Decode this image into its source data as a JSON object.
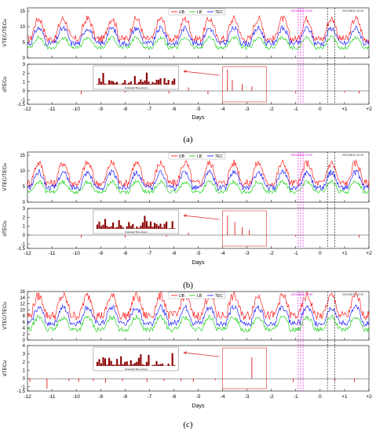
{
  "chart_data": [
    {
      "type": "line",
      "caption": "(a)",
      "top_panel": {
        "ylabel": "VTEC/TECu",
        "ylim": [
          0,
          16
        ],
        "yticks": [
          0,
          5,
          10,
          15
        ],
        "series": [
          {
            "name": "UB",
            "color": "#ff0000",
            "base": 8.5,
            "amp": 4.0,
            "noise": 1.2
          },
          {
            "name": "LB",
            "color": "#00cc00",
            "base": 4.5,
            "amp": 2.0,
            "noise": 0.6
          },
          {
            "name": "TEC",
            "color": "#0000ff",
            "base": 6.5,
            "amp": 3.0,
            "noise": 0.9
          }
        ],
        "annotation_magenta": "2021/08/14 12:29",
        "annotation_black": "2021/08/14 12:29"
      },
      "bottom_panel": {
        "ylabel": "dTECu",
        "ylim": [
          -1.5,
          3
        ],
        "yticks": [
          -1.5,
          -1,
          0,
          1,
          2,
          3
        ],
        "spikes": [
          [
            -9.8,
            -0.4
          ],
          [
            -8.0,
            -0.2
          ],
          [
            -6.2,
            -0.3
          ],
          [
            -5.4,
            0.4
          ],
          [
            -4.6,
            -0.4
          ],
          [
            -3.8,
            2.4
          ],
          [
            -3.6,
            1.2
          ],
          [
            -3.2,
            0.8
          ],
          [
            -2.8,
            0.5
          ],
          [
            -1.0,
            -0.3
          ],
          [
            1.0,
            -0.2
          ],
          [
            1.6,
            -0.3
          ]
        ],
        "inset_xlabel": "Universal Time (hour)"
      },
      "x": {
        "label": "Days",
        "xlim": [
          -12,
          2
        ],
        "ticks": [
          "-12",
          "-11",
          "-10",
          "-9",
          "-8",
          "-7",
          "-6",
          "-5",
          "-4",
          "-3",
          "-2",
          "-1",
          "0",
          "+1",
          "+2"
        ]
      },
      "event_lines_magenta": [
        -0.9,
        -0.8,
        -0.7
      ],
      "event_lines_black": [
        0.3,
        0.6
      ]
    },
    {
      "type": "line",
      "caption": "(b)",
      "top_panel": {
        "ylabel": "VTEC/TECu",
        "ylim": [
          0,
          16
        ],
        "yticks": [
          0,
          5,
          10,
          15
        ],
        "series": [
          {
            "name": "UB",
            "color": "#ff0000",
            "base": 8.5,
            "amp": 4.0,
            "noise": 1.2
          },
          {
            "name": "LB",
            "color": "#00cc00",
            "base": 4.5,
            "amp": 2.0,
            "noise": 0.6
          },
          {
            "name": "TEC",
            "color": "#0000ff",
            "base": 6.5,
            "amp": 3.0,
            "noise": 0.9
          }
        ],
        "annotation_magenta": "2021/08/14 12:29",
        "annotation_black": "2021/08/14 12:29"
      },
      "bottom_panel": {
        "ylabel": "dTECu",
        "ylim": [
          -1.5,
          3
        ],
        "yticks": [
          -1.5,
          -1,
          0,
          1,
          2,
          3
        ],
        "spikes": [
          [
            -9.8,
            -0.3
          ],
          [
            -8.0,
            -0.3
          ],
          [
            -6.3,
            -0.2
          ],
          [
            -5.4,
            0.3
          ],
          [
            -3.8,
            2.2
          ],
          [
            -3.5,
            1.5
          ],
          [
            -3.2,
            0.9
          ],
          [
            -2.9,
            0.6
          ],
          [
            -1.0,
            -0.2
          ],
          [
            1.6,
            -0.3
          ]
        ],
        "inset_xlabel": "Universal Time (hour)"
      },
      "x": {
        "label": "Days",
        "xlim": [
          -12,
          2
        ],
        "ticks": [
          "-12",
          "-11",
          "-10",
          "-9",
          "-8",
          "-7",
          "-6",
          "-5",
          "-4",
          "-3",
          "-2",
          "-1",
          "0",
          "+1",
          "+2"
        ]
      },
      "event_lines_magenta": [
        -0.9,
        -0.8,
        -0.7
      ],
      "event_lines_black": [
        0.3,
        0.6
      ]
    },
    {
      "type": "line",
      "caption": "(c)",
      "top_panel": {
        "ylabel": "VTEC/TECu",
        "ylim": [
          0,
          16
        ],
        "yticks": [
          0,
          2,
          4,
          6,
          8,
          10,
          12,
          14,
          16
        ],
        "series": [
          {
            "name": "UB",
            "color": "#ff0000",
            "base": 10.5,
            "amp": 4.0,
            "noise": 1.5
          },
          {
            "name": "LB",
            "color": "#00cc00",
            "base": 5.0,
            "amp": 2.5,
            "noise": 0.8
          },
          {
            "name": "TEC",
            "color": "#0000ff",
            "base": 7.5,
            "amp": 3.2,
            "noise": 1.0
          }
        ],
        "annotation_magenta": "2021/08/14 12:29",
        "annotation_black": "2021/08/14 12:29"
      },
      "bottom_panel": {
        "ylabel": "dTECu",
        "ylim": [
          -1.5,
          4
        ],
        "yticks": [
          -1.5,
          -1,
          0,
          1,
          2,
          3,
          4
        ],
        "spikes": [
          [
            -11.9,
            -0.4
          ],
          [
            -11.2,
            -1.2
          ],
          [
            -10.3,
            -0.3
          ],
          [
            -9.9,
            -0.4
          ],
          [
            -9.3,
            -0.3
          ],
          [
            -8.8,
            -0.5
          ],
          [
            -8.1,
            -0.3
          ],
          [
            -7.1,
            -0.4
          ],
          [
            -6.4,
            -0.3
          ],
          [
            -5.7,
            -0.3
          ],
          [
            -5.2,
            -0.4
          ],
          [
            -4.3,
            -0.2
          ],
          [
            -2.8,
            2.6
          ],
          [
            -1.1,
            -0.4
          ],
          [
            0.6,
            -0.3
          ],
          [
            1.4,
            -0.4
          ]
        ],
        "inset_xlabel": "Universal Time (hour)"
      },
      "x": {
        "label": "Days",
        "xlim": [
          -12,
          2
        ],
        "ticks": [
          "-12",
          "-11",
          "-10",
          "-9",
          "-8",
          "-7",
          "-6",
          "-5",
          "-4",
          "-3",
          "-2",
          "-1",
          "0",
          "+1",
          "+2"
        ]
      },
      "event_lines_magenta": [
        -0.9,
        -0.8,
        -0.7
      ],
      "event_lines_black": [
        0.3,
        0.6
      ]
    }
  ]
}
